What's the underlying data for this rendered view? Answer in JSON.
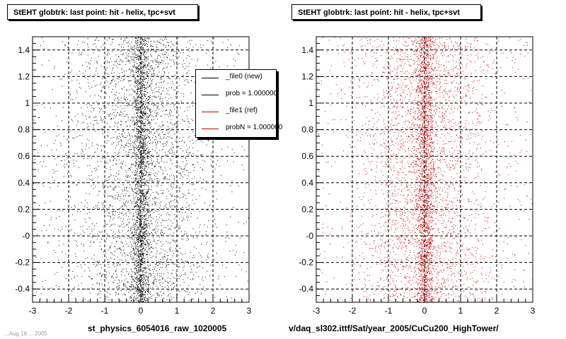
{
  "panels": [
    {
      "title": "StEHT globtrk: last point: hit - helix, tpc+svt",
      "xlabel": "st_physics_6054016_raw_1020005",
      "color": "#000000"
    },
    {
      "title": "StEHT globtrk: last point: hit - helix, tpc+svt",
      "xlabel": "v/daq_sl302.ittf/Sat/year_2005/CuCu200_HighTower/",
      "color": "#cc0000"
    }
  ],
  "legend": {
    "items": [
      {
        "label": "_file0 (new)",
        "color": "#000000"
      },
      {
        "label": "prob = 1.000000",
        "color": "#000000"
      },
      {
        "label": "_file1 (ref)",
        "color": "#cc0000"
      },
      {
        "label": "probN = 1.000000",
        "color": "#cc0000"
      }
    ]
  },
  "footer_text": "...Aug 16 ... 2005",
  "chart_data": [
    {
      "type": "scatter",
      "title": "StEHT globtrk: last point: hit - helix, tpc+svt",
      "xlabel": "st_physics_6054016_raw_1020005",
      "ylabel": "",
      "xlim": [
        -3,
        3
      ],
      "ylim": [
        -0.5,
        1.5
      ],
      "xticks": [
        "-3",
        "-2",
        "-1",
        "0",
        "1",
        "2",
        "3"
      ],
      "yticks": [
        "-0.4",
        "-0.2",
        "-0",
        "0.2",
        "0.4",
        "0.6",
        "0.8",
        "1",
        "1.2",
        "1.4"
      ],
      "grid": true,
      "series": [
        {
          "name": "_file0 (new)",
          "color": "#000000",
          "distribution": {
            "x_center": 0.0,
            "x_core_width": 0.12,
            "x_broad_width": 0.9,
            "y_range": [
              -0.5,
              1.5
            ],
            "density": "dense"
          }
        }
      ]
    },
    {
      "type": "scatter",
      "title": "StEHT globtrk: last point: hit - helix, tpc+svt",
      "xlabel": "v/daq_sl302.ittf/Sat/year_2005/CuCu200_HighTower/",
      "ylabel": "",
      "xlim": [
        -3,
        3
      ],
      "ylim": [
        -0.5,
        1.5
      ],
      "xticks": [
        "-3",
        "-2",
        "-1",
        "0",
        "1",
        "2",
        "3"
      ],
      "yticks": [
        "-0.4",
        "-0.2",
        "-0",
        "0.2",
        "0.4",
        "0.6",
        "0.8",
        "1",
        "1.2",
        "1.4"
      ],
      "grid": true,
      "series": [
        {
          "name": "_file1 (ref)",
          "color": "#cc0000",
          "distribution": {
            "x_center": 0.0,
            "x_core_width": 0.12,
            "x_broad_width": 0.9,
            "y_range": [
              -0.5,
              1.5
            ],
            "density": "dense"
          }
        }
      ]
    }
  ]
}
